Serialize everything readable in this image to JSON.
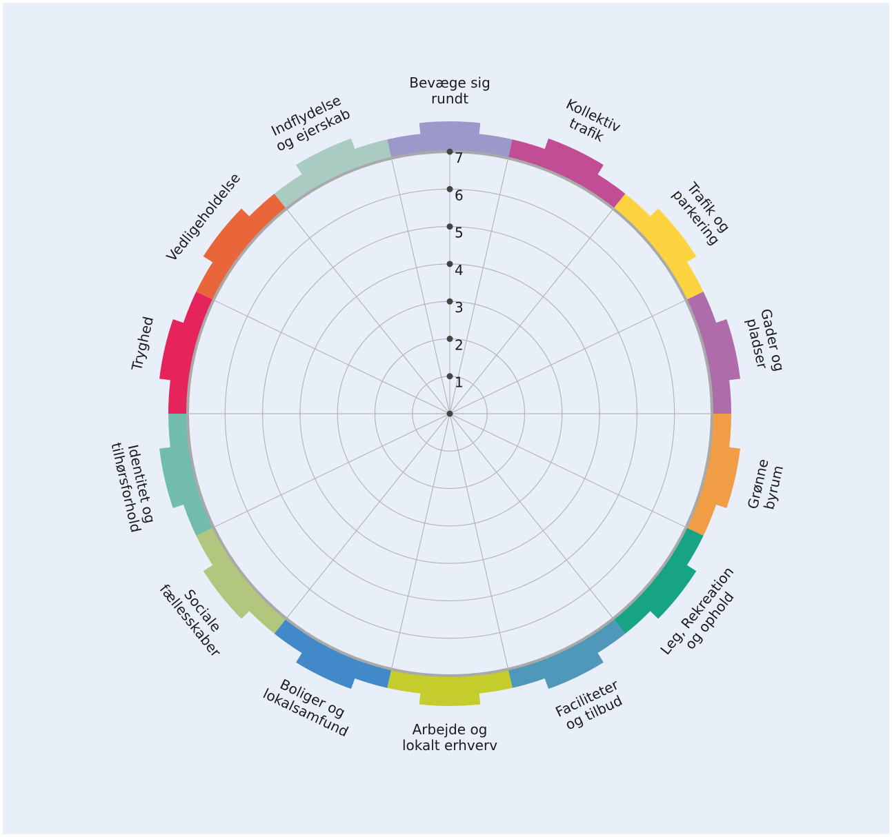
{
  "chart_data": {
    "type": "radar",
    "rlim": [
      0,
      7
    ],
    "ticks": [
      1,
      2,
      3,
      4,
      5,
      6,
      7
    ],
    "grid": true,
    "categories": [
      {
        "label_lines": [
          "Bevæge sig",
          "rundt"
        ],
        "color": "#9C98CA"
      },
      {
        "label_lines": [
          "Kollektiv",
          "trafik"
        ],
        "color": "#C14D95"
      },
      {
        "label_lines": [
          "Trafik og",
          "parkering"
        ],
        "color": "#FDD43F"
      },
      {
        "label_lines": [
          "Gader og",
          "pladser"
        ],
        "color": "#AE6CAB"
      },
      {
        "label_lines": [
          "Grønne",
          "byrum"
        ],
        "color": "#F09D45"
      },
      {
        "label_lines": [
          "Leg, Rekreation",
          "og ophold"
        ],
        "color": "#17A484"
      },
      {
        "label_lines": [
          "Faciliteter",
          "og tilbud"
        ],
        "color": "#4F98B9"
      },
      {
        "label_lines": [
          "Arbejde og",
          "lokalt erhverv"
        ],
        "color": "#C4CD2C"
      },
      {
        "label_lines": [
          "Boliger og",
          "lokalsamfund"
        ],
        "color": "#4189C9"
      },
      {
        "label_lines": [
          "Sociale",
          "fællesskaber"
        ],
        "color": "#B2C67E"
      },
      {
        "label_lines": [
          "Identitet og",
          "tilhørsforhold"
        ],
        "color": "#72BCAD"
      },
      {
        "label_lines": [
          "Tryghed"
        ],
        "color": "#E4245B"
      },
      {
        "label_lines": [
          "Vedligeholdelse"
        ],
        "color": "#E9663A"
      },
      {
        "label_lines": [
          "Indflydelse",
          "og ejerskab"
        ],
        "color": "#A9CBC1"
      }
    ],
    "colors": {
      "background": "#E9EFF8",
      "grid": "#B5B5B5",
      "outer_ring": "#A9A9A9",
      "tick_dot": "#444444"
    }
  }
}
